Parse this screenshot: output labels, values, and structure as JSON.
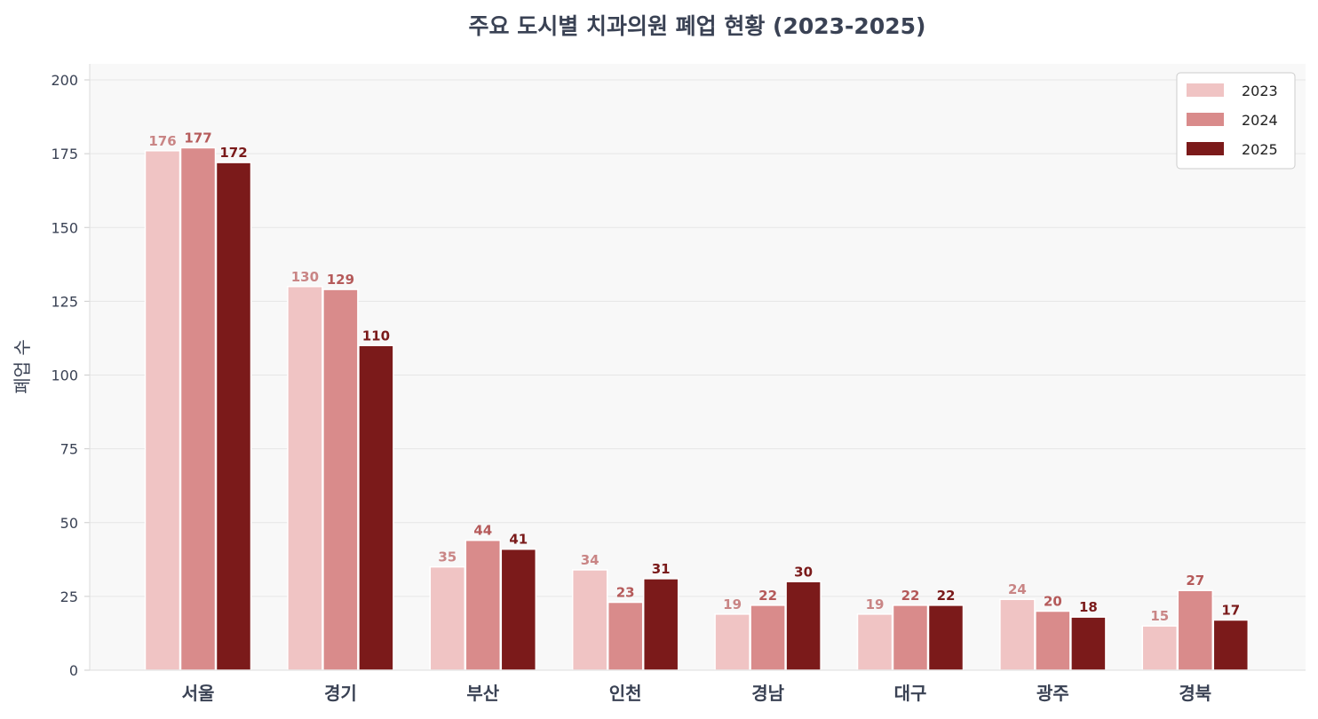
{
  "chart_data": {
    "type": "bar",
    "title": "주요 도시별 치과의원 폐업 현황 (2023-2025)",
    "xlabel": "",
    "ylabel": "폐업 수",
    "ylim": [
      0,
      206
    ],
    "yticks": [
      0,
      25,
      50,
      75,
      100,
      125,
      150,
      175,
      200
    ],
    "grid": true,
    "legend_position": "top-right",
    "categories": [
      "서울",
      "경기",
      "부산",
      "인천",
      "경남",
      "대구",
      "광주",
      "경북"
    ],
    "series": [
      {
        "name": "2023",
        "color": "#f0c4c4",
        "label_color": "#c98585",
        "values": [
          176,
          130,
          35,
          34,
          19,
          19,
          24,
          15
        ]
      },
      {
        "name": "2024",
        "color": "#d98b8b",
        "label_color": "#b55a5a",
        "values": [
          177,
          129,
          44,
          23,
          22,
          22,
          20,
          27
        ]
      },
      {
        "name": "2025",
        "color": "#7b1a1a",
        "label_color": "#7a1a1a",
        "values": [
          172,
          110,
          41,
          31,
          30,
          22,
          18,
          17
        ]
      }
    ]
  }
}
